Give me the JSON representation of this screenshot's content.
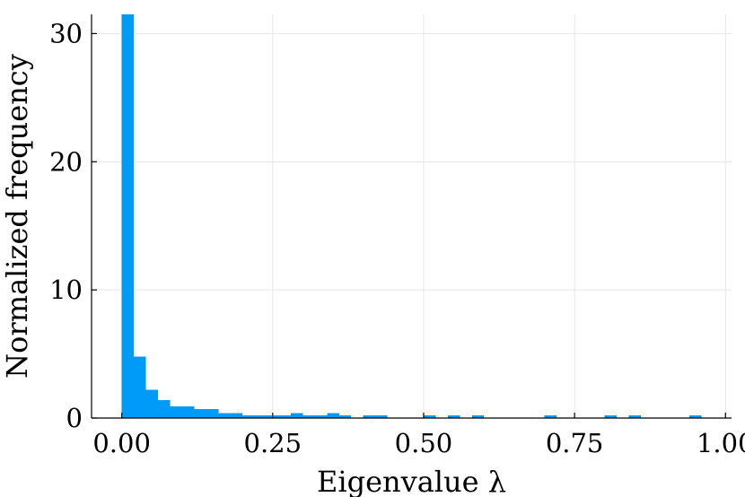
{
  "chart_data": {
    "type": "bar",
    "title": "",
    "xlabel": "Eigenvalue λ",
    "ylabel": "Normalized frequency",
    "xlim": [
      -0.05,
      1.01
    ],
    "ylim": [
      0,
      31.5
    ],
    "xticks": [
      0.0,
      0.25,
      0.5,
      0.75,
      1.0
    ],
    "xtick_labels": [
      "0.00",
      "0.25",
      "0.50",
      "0.75",
      "1.00"
    ],
    "yticks": [
      0,
      10,
      20,
      30
    ],
    "ytick_labels": [
      "0",
      "10",
      "20",
      "30"
    ],
    "grid": true,
    "legend": "none",
    "bar_color": "#009af9",
    "bin_width": 0.02,
    "bins": [
      {
        "x0": 0.0,
        "value": 31.5
      },
      {
        "x0": 0.02,
        "value": 4.8
      },
      {
        "x0": 0.04,
        "value": 2.2
      },
      {
        "x0": 0.06,
        "value": 1.4
      },
      {
        "x0": 0.08,
        "value": 0.9
      },
      {
        "x0": 0.1,
        "value": 0.9
      },
      {
        "x0": 0.12,
        "value": 0.7
      },
      {
        "x0": 0.14,
        "value": 0.7
      },
      {
        "x0": 0.16,
        "value": 0.4
      },
      {
        "x0": 0.18,
        "value": 0.4
      },
      {
        "x0": 0.2,
        "value": 0.2
      },
      {
        "x0": 0.22,
        "value": 0.2
      },
      {
        "x0": 0.24,
        "value": 0.2
      },
      {
        "x0": 0.26,
        "value": 0.2
      },
      {
        "x0": 0.28,
        "value": 0.4
      },
      {
        "x0": 0.3,
        "value": 0.2
      },
      {
        "x0": 0.32,
        "value": 0.2
      },
      {
        "x0": 0.34,
        "value": 0.4
      },
      {
        "x0": 0.36,
        "value": 0.2
      },
      {
        "x0": 0.4,
        "value": 0.2
      },
      {
        "x0": 0.42,
        "value": 0.2
      },
      {
        "x0": 0.5,
        "value": 0.2
      },
      {
        "x0": 0.54,
        "value": 0.2
      },
      {
        "x0": 0.58,
        "value": 0.2
      },
      {
        "x0": 0.7,
        "value": 0.2
      },
      {
        "x0": 0.8,
        "value": 0.2
      },
      {
        "x0": 0.84,
        "value": 0.2
      },
      {
        "x0": 0.94,
        "value": 0.2
      }
    ]
  }
}
